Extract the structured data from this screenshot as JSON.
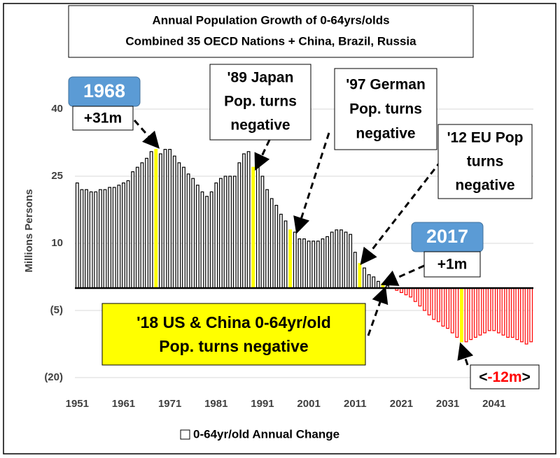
{
  "chart_data": {
    "type": "bar",
    "title": [
      "Annual Population Growth of 0-64yrs/olds",
      "Combined 35 OECD Nations + China, Brazil, Russia"
    ],
    "y_label": "Millions Persons",
    "x": [
      1951,
      1952,
      1953,
      1954,
      1955,
      1956,
      1957,
      1958,
      1959,
      1960,
      1961,
      1962,
      1963,
      1964,
      1965,
      1966,
      1967,
      1968,
      1969,
      1970,
      1971,
      1972,
      1973,
      1974,
      1975,
      1976,
      1977,
      1978,
      1979,
      1980,
      1981,
      1982,
      1983,
      1984,
      1985,
      1986,
      1987,
      1988,
      1989,
      1990,
      1991,
      1992,
      1993,
      1994,
      1995,
      1996,
      1997,
      1998,
      1999,
      2000,
      2001,
      2002,
      2003,
      2004,
      2005,
      2006,
      2007,
      2008,
      2009,
      2010,
      2011,
      2012,
      2013,
      2014,
      2015,
      2016,
      2017,
      2018,
      2019,
      2020,
      2021,
      2022,
      2023,
      2024,
      2025,
      2026,
      2027,
      2028,
      2029,
      2030,
      2031,
      2032,
      2033,
      2034,
      2035,
      2036,
      2037,
      2038,
      2039,
      2040,
      2041,
      2042,
      2043,
      2044,
      2045,
      2046,
      2047,
      2048,
      2049
    ],
    "series": [
      {
        "name": "0-64yr/old Annual Change",
        "color": "#ffffff",
        "values": [
          23.5,
          22,
          22,
          21.5,
          21.5,
          22,
          22,
          22.5,
          22.5,
          23,
          23.5,
          24,
          26,
          27,
          28,
          29,
          30.5,
          31,
          30,
          31,
          31,
          29.5,
          28,
          27,
          25.5,
          24.5,
          23,
          21.5,
          20.5,
          21.5,
          23.5,
          24.5,
          25,
          25,
          25,
          28,
          30,
          30.5,
          27,
          29,
          25,
          22,
          20,
          18.5,
          16.5,
          15,
          13,
          12.5,
          11,
          11,
          10.5,
          10.5,
          10.5,
          11,
          11.5,
          12.5,
          13,
          13,
          12.5,
          12,
          8,
          5.5,
          4.5,
          3,
          2.5,
          1.5,
          1,
          0.5,
          0,
          -0.5,
          -1,
          -1.5,
          -2,
          -3,
          -4,
          -5,
          -6,
          -7,
          -7.5,
          -8.5,
          -9,
          -10,
          -11,
          -12,
          -12,
          -11.5,
          -11,
          -10.5,
          -10,
          -9.5,
          -9.5,
          -10,
          -10.5,
          -11,
          -11,
          -11.5,
          -12,
          -12.5,
          -12
        ]
      }
    ],
    "outline_color": "#000000",
    "negative_color": "#ff0000",
    "highlight_x": [
      1968,
      1989,
      1997,
      2012,
      2017,
      2034
    ],
    "highlight_color": "#ffff00",
    "xlim": [
      1950.5,
      2049.5
    ],
    "xticks": [
      1951,
      1961,
      1971,
      1981,
      1991,
      2001,
      2011,
      2021,
      2031,
      2041
    ],
    "ylim": [
      -22,
      41
    ],
    "yticks": [
      40,
      25,
      10,
      {
        "value": -5,
        "label": "(5)"
      },
      {
        "value": -20,
        "label": "(20)"
      }
    ],
    "grid": true,
    "annotations": [
      {
        "text": "1968"
      },
      {
        "text": "+31m"
      },
      {
        "lines": [
          "'89 Japan",
          "Pop. turns",
          "negative"
        ]
      },
      {
        "lines": [
          "'97 German",
          "Pop. turns",
          "negative"
        ]
      },
      {
        "lines": [
          "'12 EU Pop",
          "turns",
          "negative"
        ]
      },
      {
        "text": "2017"
      },
      {
        "text": "+1m"
      },
      {
        "lines": [
          "'18 US & China  0-64yr/old",
          "Pop. turns  negative"
        ]
      },
      {
        "parts": [
          "<",
          "-12m",
          ">"
        ]
      }
    ]
  }
}
